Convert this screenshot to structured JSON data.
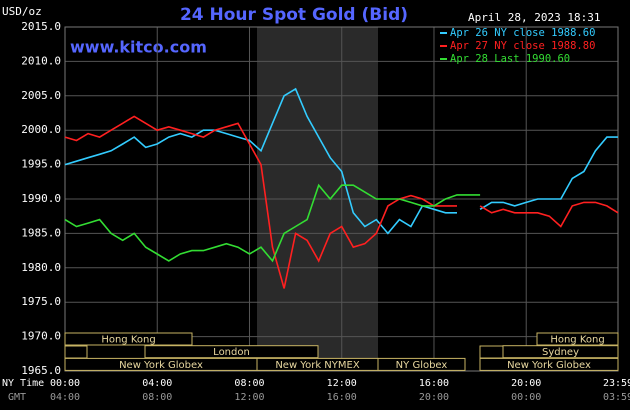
{
  "chart_data": {
    "type": "line",
    "title": "24 Hour Spot Gold (Bid)",
    "subtitle": "www.kitco.com",
    "y_label": "USD/oz",
    "timestamp": "April 28, 2023 18:31",
    "x_label": "NY Time",
    "x2_label": "GMT",
    "x": [
      0,
      0.5,
      1,
      1.5,
      2,
      2.5,
      3,
      3.5,
      4,
      4.5,
      5,
      5.5,
      6,
      6.5,
      7,
      7.5,
      8,
      8.5,
      9,
      9.5,
      10,
      10.5,
      11,
      11.5,
      12,
      12.5,
      13,
      13.5,
      14,
      14.5,
      15,
      15.5,
      16,
      16.5,
      17,
      17.5,
      18,
      18.5,
      19,
      19.5,
      20,
      20.5,
      21,
      21.5,
      22,
      22.5,
      23,
      23.5,
      23.98
    ],
    "series": [
      {
        "name": "Apr 26 NY close 1988.60",
        "color": "#33ccff",
        "values": [
          1995,
          1995.5,
          1996,
          1996.5,
          1997,
          1998,
          1999,
          1997.5,
          1998,
          1999,
          1999.5,
          1999,
          2000,
          2000,
          1999.5,
          1999,
          1998.5,
          1997,
          2001,
          2005,
          2006,
          2002,
          1999,
          1996,
          1994,
          1988,
          1986,
          1987,
          1985,
          1987,
          1986,
          1989,
          1988.5,
          1988,
          1988,
          null,
          1988.5,
          1989.5,
          1989.5,
          1989,
          1989.5,
          1990,
          1990,
          1990,
          1993,
          1994,
          1997,
          1999,
          1999
        ]
      },
      {
        "name": "Apr 27 NY close 1988.80",
        "color": "#ff2020",
        "values": [
          1999,
          1998.5,
          1999.5,
          1999,
          2000,
          2001,
          2002,
          2001,
          2000,
          2000.5,
          2000,
          1999.5,
          1999,
          2000,
          2000.5,
          2001,
          1998,
          1995,
          1983,
          1977,
          1985,
          1984,
          1981,
          1985,
          1986,
          1983,
          1983.5,
          1985,
          1989,
          1990,
          1990.5,
          1990,
          1989,
          1989,
          1989,
          null,
          1989,
          1988,
          1988.5,
          1988,
          1988,
          1988,
          1987.5,
          1986,
          1989,
          1989.5,
          1989.5,
          1989,
          1988
        ]
      },
      {
        "name": "Apr 28 Last 1990.60",
        "color": "#33dd33",
        "values": [
          1987,
          1986,
          1986.5,
          1987,
          1985,
          1984,
          1985,
          1983,
          1982,
          1981,
          1982,
          1982.5,
          1982.5,
          1983,
          1983.5,
          1983,
          1982,
          1983,
          1981,
          1985,
          1986,
          1987,
          1992,
          1990,
          1992,
          1992,
          1991,
          1990,
          1990,
          1990,
          1989.5,
          1989,
          1989,
          1990,
          1990.6,
          1990.6,
          1990.6,
          null,
          null,
          null,
          null,
          null,
          null,
          null,
          null,
          null,
          null,
          null,
          null
        ]
      }
    ],
    "ylim": [
      1965,
      2015
    ],
    "yticks": [
      {
        "value": 1965,
        "label": "1965.0"
      },
      {
        "value": 1970,
        "label": "1970.0"
      },
      {
        "value": 1975,
        "label": "1975.0"
      },
      {
        "value": 1980,
        "label": "1980.0"
      },
      {
        "value": 1985,
        "label": "1985.0"
      },
      {
        "value": 1990,
        "label": "1990.0"
      },
      {
        "value": 1995,
        "label": "1995.0"
      },
      {
        "value": 2000,
        "label": "2000.0"
      },
      {
        "value": 2005,
        "label": "2005.0"
      },
      {
        "value": 2010,
        "label": "2010.0"
      },
      {
        "value": 2015,
        "label": "2015.0"
      }
    ],
    "xlim": [
      0,
      23.98
    ],
    "xticks": [
      {
        "value": 0,
        "label": "00:00"
      },
      {
        "value": 4,
        "label": "04:00"
      },
      {
        "value": 8,
        "label": "08:00"
      },
      {
        "value": 12,
        "label": "12:00"
      },
      {
        "value": 16,
        "label": "16:00"
      },
      {
        "value": 20,
        "label": "20:00"
      },
      {
        "value": 23.98,
        "label": "23:59"
      }
    ],
    "x2ticks": [
      {
        "value": 0,
        "label": "04:00"
      },
      {
        "value": 4,
        "label": "08:00"
      },
      {
        "value": 8,
        "label": "12:00"
      },
      {
        "value": 12,
        "label": "16:00"
      },
      {
        "value": 16,
        "label": "20:00"
      },
      {
        "value": 20,
        "label": "00:00"
      },
      {
        "value": 23.98,
        "label": "03:59"
      }
    ],
    "sessions": [
      "Hong Kong",
      "London",
      "New York Globex",
      "New York NYMEX",
      "NY Globex",
      "Hong Kong",
      "Sydney",
      "New York Globex"
    ],
    "grid": true
  }
}
